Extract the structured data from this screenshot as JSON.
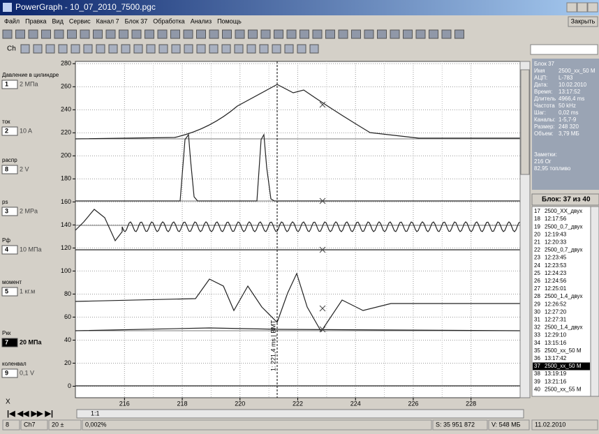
{
  "title_bar": {
    "title": "PowerGraph - 10_07_2010_7500.pgc"
  },
  "menu": [
    "Файл",
    "Правка",
    "Вид",
    "Сервис",
    "Канал 7",
    "Блок 37",
    "Обработка",
    "Анализ",
    "Помощь"
  ],
  "close_button": "Закрыть",
  "toolbar": {
    "channel_button": "Ch"
  },
  "channels": [
    {
      "name": "Давление в цилиндре",
      "number": "1",
      "scale": "2 МПа"
    },
    {
      "name": "ток",
      "number": "2",
      "scale": "10 A"
    },
    {
      "name": "распр",
      "number": "8",
      "scale": "2 V"
    },
    {
      "name": "ps",
      "number": "3",
      "scale": "2 MPa"
    },
    {
      "name": "Pф",
      "number": "4",
      "scale": "10 МПа"
    },
    {
      "name": "момент",
      "number": "5",
      "scale": "1 кг.м"
    },
    {
      "name": "Ркк",
      "number": "7",
      "scale": "20 МПа"
    },
    {
      "name": "коленвал",
      "number": "9",
      "scale": "0,1 V"
    }
  ],
  "plot": {
    "ylim": [
      -10,
      282
    ],
    "yticks": [
      0,
      20,
      40,
      60,
      80,
      100,
      120,
      140,
      160,
      180,
      200,
      220,
      240,
      260,
      280
    ],
    "xlim": [
      214.3,
      229.7
    ],
    "xticks": [
      216,
      218,
      220,
      222,
      224,
      226,
      228
    ],
    "cursor_label": "1: 221,4 ms | ВМТ",
    "x_axis_symbol": "X"
  },
  "info": {
    "block": "Блок 37",
    "lines": [
      [
        "Имя",
        "2500_xx_50 M"
      ],
      [
        "АЦП:",
        "L-783"
      ],
      [
        "Дата:",
        "10.02.2010"
      ],
      [
        "Время:",
        "13:17:52"
      ],
      [
        "Длитель",
        "4966,4 ms"
      ],
      [
        "Частота",
        "50 kHz"
      ],
      [
        "Шаг:",
        "0,02 ms"
      ],
      [
        "Каналы:",
        "1-5,7-9"
      ],
      [
        "Размер:",
        "248 320"
      ],
      [
        "Объем:",
        "3,79 МБ"
      ]
    ],
    "notes_label": "Заметки:",
    "notes": [
      "216 Ог",
      "82,95 топливо"
    ]
  },
  "block_list": {
    "header": "Блок: 37 из 40",
    "selected": 20,
    "rows": [
      [
        "17",
        "2500_XX_двух"
      ],
      [
        "18",
        "12:17:56"
      ],
      [
        "19",
        "2500_0,7_двух"
      ],
      [
        "20",
        "12:19:43"
      ],
      [
        "21",
        "12:20:33"
      ],
      [
        "22",
        "2500_0,7_двух"
      ],
      [
        "23",
        "12:23:45"
      ],
      [
        "24",
        "12:23:53"
      ],
      [
        "25",
        "12:24:23"
      ],
      [
        "26",
        "12:24:56"
      ],
      [
        "27",
        "12:25:01"
      ],
      [
        "28",
        "2500_1,4_двух"
      ],
      [
        "29",
        "12:26:52"
      ],
      [
        "30",
        "12:27:20"
      ],
      [
        "31",
        "12:27:31"
      ],
      [
        "32",
        "2500_1,4_двух"
      ],
      [
        "33",
        "12:29:10"
      ],
      [
        "34",
        "13:15:16"
      ],
      [
        "35",
        "2500_xx_50 M"
      ],
      [
        "36",
        "13:17:42"
      ],
      [
        "37",
        "2500_xx_50 M"
      ],
      [
        "38",
        "13:19:19"
      ],
      [
        "39",
        "13:21:16"
      ],
      [
        "40",
        "2500_xx_55 M"
      ]
    ]
  },
  "zoom": "1:1",
  "status_bar": [
    "8",
    "Ch7",
    "20 ±",
    "0,002%",
    "S: 35 951 872",
    "V: 548 МБ",
    "11.02.2010"
  ]
}
